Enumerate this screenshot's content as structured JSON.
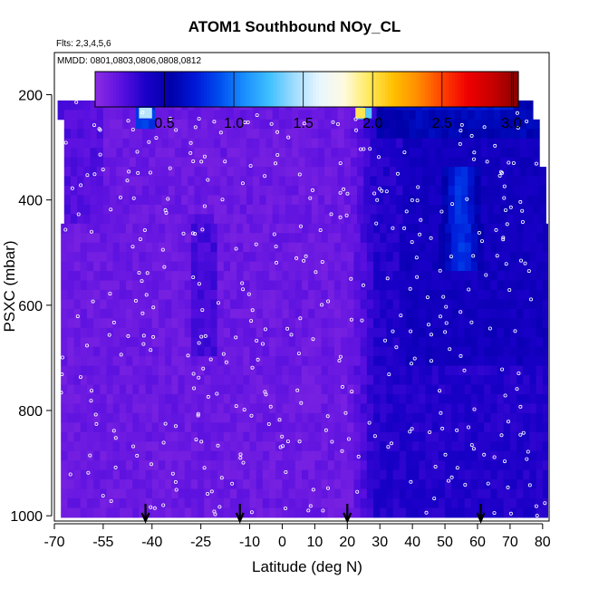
{
  "chart_data": {
    "type": "heatmap",
    "title": "ATOM1 Southbound NOy_CL",
    "subtitle_flights": "Flts: 2,3,4,5,6",
    "subtitle_dates": "MMDD: 0801,0803,0806,0808,0812",
    "xlabel": "Latitude (deg N)",
    "ylabel": "PSXC (mbar)",
    "xlim": [
      -70,
      82
    ],
    "ylim": [
      1010,
      120
    ],
    "x_ticks": [
      -70,
      -55,
      -40,
      -25,
      -10,
      0,
      10,
      20,
      30,
      40,
      50,
      60,
      70,
      80
    ],
    "x_tick_labels": [
      "-70",
      "-55",
      "-40",
      "-25",
      "-10",
      "0",
      "10",
      "20",
      "30",
      "40",
      "50",
      "60",
      "70",
      "80"
    ],
    "y_ticks": [
      200,
      400,
      600,
      800,
      1000
    ],
    "y_tick_labels": [
      "200",
      "400",
      "600",
      "800",
      "1000"
    ],
    "colorbar": {
      "min": 0,
      "max": 3.05,
      "ticks": [
        0.5,
        1.0,
        1.5,
        2.0,
        2.5,
        3.0
      ],
      "tick_labels": [
        "0.5",
        "1.0",
        "1.5",
        "2.0",
        "2.5",
        "3.0"
      ],
      "colors": [
        "#8a2be2",
        "#5a10e0",
        "#1a00c8",
        "#0000a8",
        "#0018d8",
        "#0050f0",
        "#1a90ff",
        "#40c0ff",
        "#a0dcff",
        "#e8f6ff",
        "#fffae0",
        "#ffea60",
        "#ffc000",
        "#ff8c00",
        "#ff4000",
        "#f00000",
        "#c80000",
        "#8b0000"
      ]
    },
    "arrows_latitude": [
      -42,
      -13,
      20,
      61
    ],
    "grid": false
  }
}
